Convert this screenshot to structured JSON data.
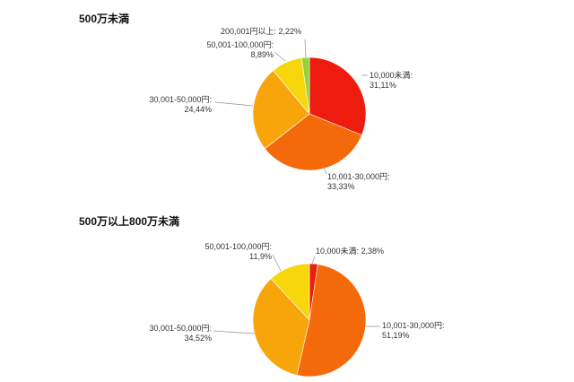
{
  "chart_data": [
    {
      "type": "pie",
      "title": "500万未満",
      "slices": [
        {
          "label": "10,000未満",
          "value": 31.11,
          "value_text": "31,11%",
          "color": "#ee1c0e"
        },
        {
          "label": "10,001-30,000円",
          "value": 33.33,
          "value_text": "33,33%",
          "color": "#f46a0a"
        },
        {
          "label": "30,001-50,000円",
          "value": 24.44,
          "value_text": "24,44%",
          "color": "#f8a50c"
        },
        {
          "label": "50,001-100,000円",
          "value": 8.89,
          "value_text": "8,89%",
          "color": "#f8d60c"
        },
        {
          "label": "200,001円以上",
          "value": 2.22,
          "value_text": "2,22%",
          "color": "#94d23a"
        }
      ]
    },
    {
      "type": "pie",
      "title": "500万以上800万未満",
      "slices": [
        {
          "label": "10,000未満",
          "value": 2.38,
          "value_text": "2,38%",
          "color": "#ee1c0e"
        },
        {
          "label": "10,001-30,000円",
          "value": 51.19,
          "value_text": "51,19%",
          "color": "#f46a0a"
        },
        {
          "label": "30,001-50,000円",
          "value": 34.52,
          "value_text": "34,52%",
          "color": "#f8a50c"
        },
        {
          "label": "50,001-100,000円",
          "value": 11.9,
          "value_text": "11,9%",
          "color": "#f8d60c"
        }
      ]
    }
  ]
}
